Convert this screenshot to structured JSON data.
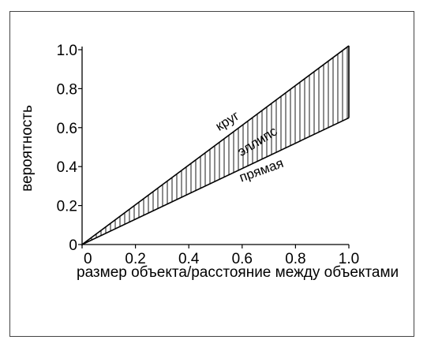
{
  "chart_data": {
    "type": "area",
    "title": "",
    "xlabel": "размер объекта/расстояние между объектами",
    "ylabel": "вероятность",
    "xlim": [
      0,
      1.0
    ],
    "ylim": [
      0,
      1.0
    ],
    "x_ticks": [
      "0",
      "0.2",
      "0.4",
      "0.6",
      "0.8",
      "1.0"
    ],
    "y_ticks": [
      "0",
      "0.2",
      "0.4",
      "0.6",
      "0.8",
      "1.0"
    ],
    "grid": false,
    "series": [
      {
        "name": "круг",
        "x": [
          0,
          1.0
        ],
        "y": [
          0,
          1.02
        ]
      },
      {
        "name": "прямая",
        "x": [
          0,
          1.0
        ],
        "y": [
          0,
          0.65
        ]
      }
    ],
    "shaded_region": {
      "label": "эллипс",
      "between": [
        "круг",
        "прямая"
      ],
      "pattern": "vertical-hatch"
    }
  }
}
